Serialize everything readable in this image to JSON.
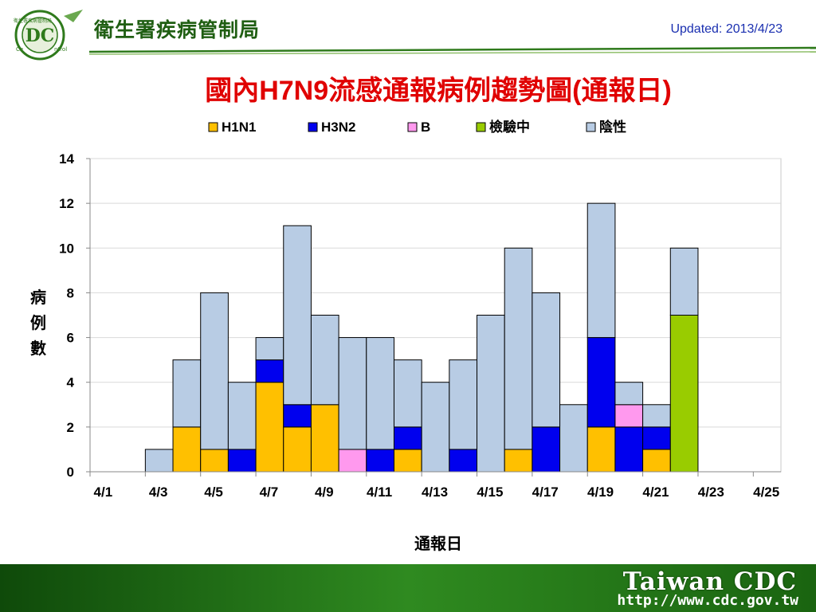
{
  "header": {
    "agency_name": "衛生署疾病管制局",
    "logo_text": "衛生署疾病管制局",
    "logo_mark": "DC",
    "logo_side_left": "Ce",
    "logo_side_right": "ntrol",
    "updated": "Updated: 2013/4/23"
  },
  "footer": {
    "brand": "Taiwan CDC",
    "url": "http://www.cdc.gov.tw"
  },
  "colors": {
    "H1N1": "#ffc000",
    "H3N2": "#0000ee",
    "B": "#ff99ee",
    "testing": "#99cc00",
    "negative": "#b8cce4",
    "title_red": "#e00000",
    "header_green": "#1f5e12",
    "footer_green": "#2d7a1a"
  },
  "chart_data": {
    "type": "bar",
    "stacked": true,
    "title_prefix": "國內",
    "title_bold": "H7N9",
    "title_suffix": "流感通報病例趨勢圖",
    "title_paren_open": "(",
    "title_paren_text": "通報日",
    "title_paren_close": ")",
    "xlabel": "通報日",
    "ylabel": [
      "病",
      "例",
      "數"
    ],
    "ylim": [
      0,
      14
    ],
    "yticks": [
      0,
      2,
      4,
      6,
      8,
      10,
      12,
      14
    ],
    "grid": true,
    "legend_position": "top",
    "categories": [
      "4/1",
      "4/2",
      "4/3",
      "4/4",
      "4/5",
      "4/6",
      "4/7",
      "4/8",
      "4/9",
      "4/10",
      "4/11",
      "4/12",
      "4/13",
      "4/14",
      "4/15",
      "4/16",
      "4/17",
      "4/18",
      "4/19",
      "4/20",
      "4/21",
      "4/22",
      "4/23",
      "4/24",
      "4/25"
    ],
    "x_tick_labels": [
      "4/1",
      "4/3",
      "4/5",
      "4/7",
      "4/9",
      "4/11",
      "4/13",
      "4/15",
      "4/17",
      "4/19",
      "4/21",
      "4/23",
      "4/25"
    ],
    "series": [
      {
        "name": "H1N1",
        "color": "#ffc000",
        "values": [
          0,
          0,
          0,
          2,
          1,
          0,
          4,
          2,
          3,
          0,
          0,
          1,
          0,
          0,
          0,
          1,
          0,
          0,
          2,
          0,
          1,
          0,
          0,
          0,
          0
        ]
      },
      {
        "name": "H3N2",
        "color": "#0000ee",
        "values": [
          0,
          0,
          0,
          0,
          0,
          1,
          1,
          1,
          0,
          0,
          1,
          1,
          0,
          1,
          0,
          0,
          2,
          0,
          4,
          2,
          1,
          0,
          0,
          0,
          0
        ]
      },
      {
        "name": "B",
        "color": "#ff99ee",
        "values": [
          0,
          0,
          0,
          0,
          0,
          0,
          0,
          0,
          0,
          1,
          0,
          0,
          0,
          0,
          0,
          0,
          0,
          0,
          0,
          1,
          0,
          0,
          0,
          0,
          0
        ]
      },
      {
        "name": "檢驗中",
        "color": "#99cc00",
        "values": [
          0,
          0,
          0,
          0,
          0,
          0,
          0,
          0,
          0,
          0,
          0,
          0,
          0,
          0,
          0,
          0,
          0,
          0,
          0,
          0,
          0,
          7,
          0,
          0,
          0
        ]
      },
      {
        "name": "陰性",
        "color": "#b8cce4",
        "values": [
          0,
          0,
          1,
          3,
          7,
          3,
          1,
          8,
          4,
          5,
          5,
          3,
          4,
          4,
          7,
          9,
          6,
          3,
          6,
          1,
          1,
          3,
          0,
          0,
          0
        ]
      }
    ]
  }
}
